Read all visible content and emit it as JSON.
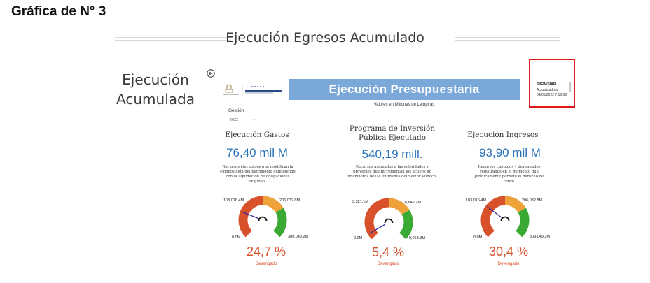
{
  "figure_title": "Gráfica de N° 3",
  "section_title": "Ejecución Egresos Acumulado",
  "side_title": "Ejecución\nAcumulada",
  "banner": {
    "title": "Ejecución Presupuestaria",
    "units": "Valores en Millones de Lempiras"
  },
  "update": {
    "source": "SIIFIN/SIAFI",
    "label": "Actualizado al",
    "date": "04/05/2022 7:16:56"
  },
  "filter": {
    "label": "Gestión",
    "value": "2022"
  },
  "kpis": [
    {
      "title": "Ejecución Gastos",
      "value": "76,40 mil M",
      "description": "Recursos ejecutados que modifican la composición del patrimonio cumpliendo con la liquidación de obligaciones exigibles.",
      "gauge": {
        "min": "0.0M",
        "mid": "103,016.4M",
        "target": "206,032.8M",
        "max": "309,049.2M",
        "fraction": 0.247
      },
      "percent": "24,7 %",
      "status": "Devengado"
    },
    {
      "title": "Programa de Inversión Pública Ejecutado",
      "value": "540,19 mill.",
      "description": "Recursos asignados a las actividades y proyectos que incrementan los activos no financieros de las entidades del Sector Público.",
      "gauge": {
        "min": "0.0M",
        "mid": "3,321.1M",
        "target": "6,642.2M",
        "max": "9,963.3M",
        "fraction": 0.054
      },
      "percent": "5,4 %",
      "status": "Devengado"
    },
    {
      "title": "Ejecución Ingresos",
      "value": "93,90 mil M",
      "description": "Recursos captados y devengados registrados en el momento que jurídicamente permite el derecho de cobro.",
      "gauge": {
        "min": "0.0M",
        "mid": "103,016.4M",
        "target": "206,032.8M",
        "max": "309,049.2M",
        "fraction": 0.304
      },
      "percent": "30,4 %",
      "status": "Devengado"
    }
  ],
  "colors": {
    "banner": "#7aa8d9",
    "value_blue": "#2a72b8",
    "gauge_red": "#d9512a",
    "gauge_orange": "#f0a23a",
    "gauge_green": "#3aaa35",
    "needle": "#2c2c9c",
    "highlight_border": "#e01a1a"
  }
}
